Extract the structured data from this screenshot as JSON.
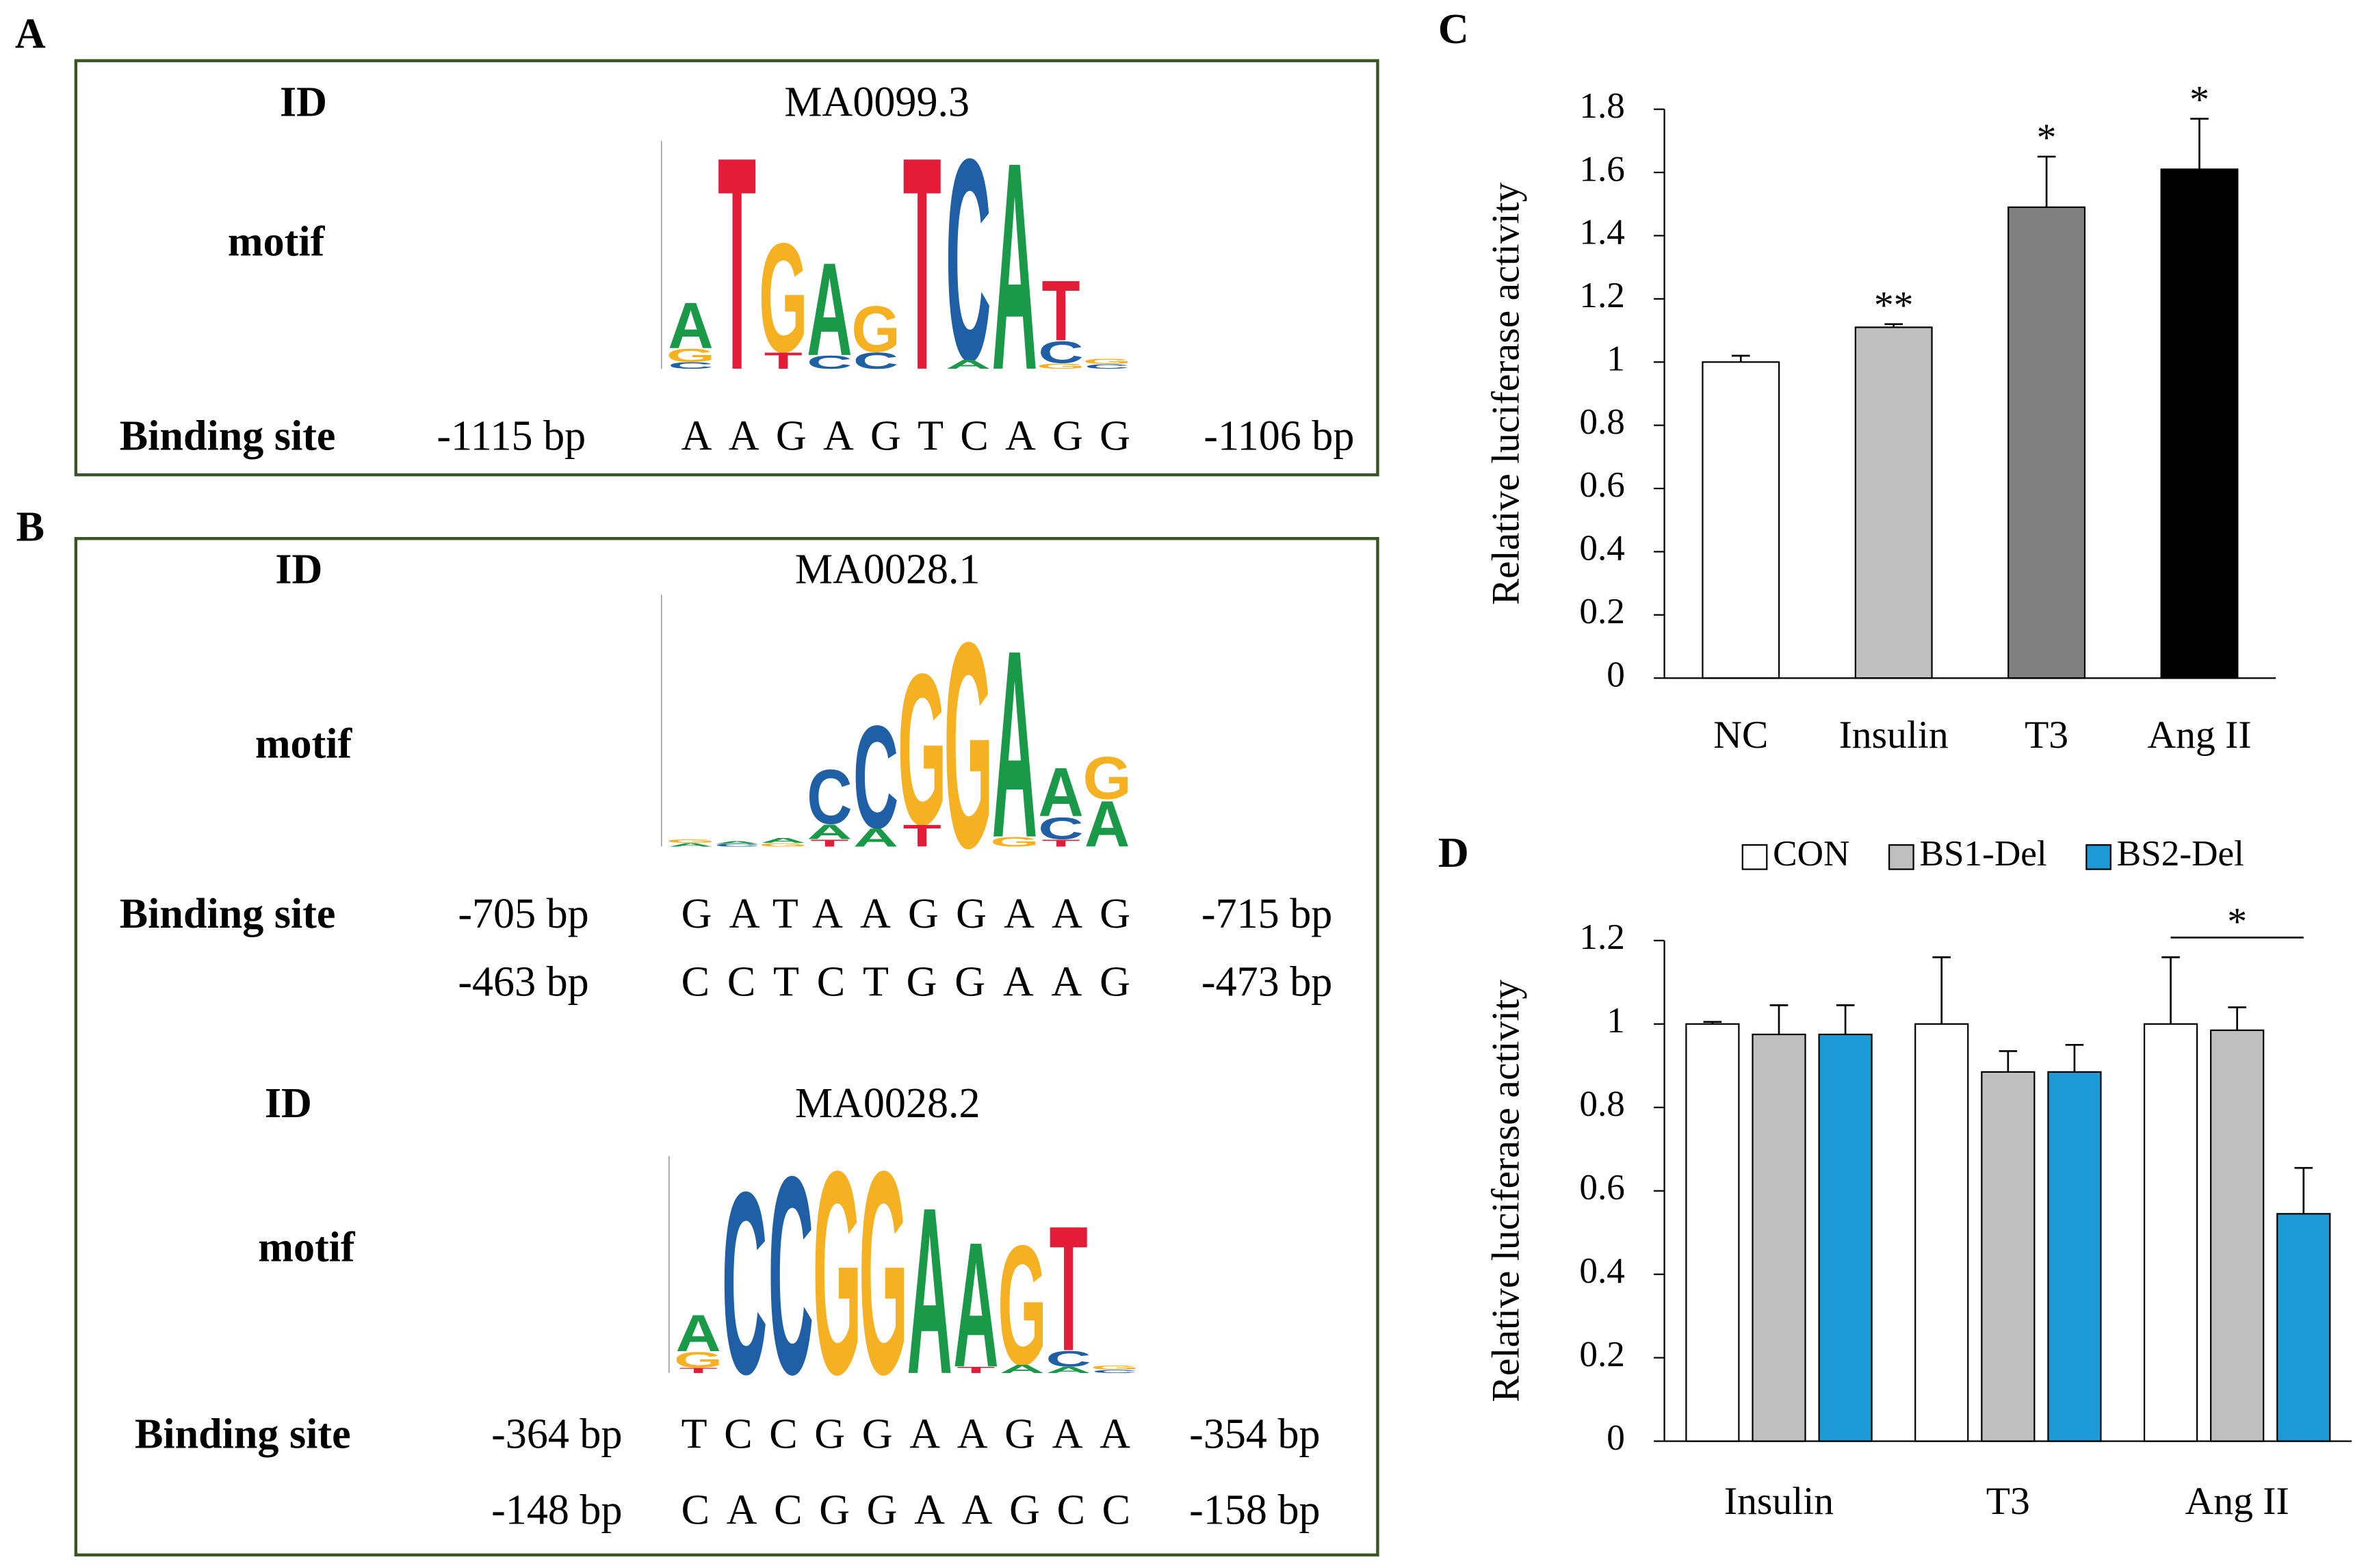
{
  "panels": [
    {
      "label": "A",
      "entries": [
        {
          "id_label": "ID",
          "id": "MA0099.3",
          "motif_label": "motif",
          "logo": [
            {
              "letters": [
                "A",
                "G",
                "C"
              ],
              "bits": [
                0.42,
                0.12,
                0.06
              ]
            },
            {
              "letters": [
                "T"
              ],
              "bits": [
                1.95
              ]
            },
            {
              "letters": [
                "G",
                "T"
              ],
              "bits": [
                1.0,
                0.15
              ]
            },
            {
              "letters": [
                "A",
                "C"
              ],
              "bits": [
                0.85,
                0.12
              ]
            },
            {
              "letters": [
                "G",
                "C"
              ],
              "bits": [
                0.42,
                0.15
              ]
            },
            {
              "letters": [
                "T"
              ],
              "bits": [
                1.95
              ]
            },
            {
              "letters": [
                "C",
                "A"
              ],
              "bits": [
                1.85,
                0.08
              ]
            },
            {
              "letters": [
                "A"
              ],
              "bits": [
                1.9
              ]
            },
            {
              "letters": [
                "T",
                "C",
                "G"
              ],
              "bits": [
                0.55,
                0.2,
                0.05
              ]
            },
            {
              "letters": [
                "G",
                "C"
              ],
              "bits": [
                0.05,
                0.04
              ]
            }
          ],
          "binding_label": "Binding site",
          "sites": [
            {
              "start": "-1115 bp",
              "sequence": "AAGAGTCAGG",
              "end": "-1106 bp"
            }
          ]
        }
      ]
    },
    {
      "label": "B",
      "entries": [
        {
          "id_label": "ID",
          "id": "MA0028.1",
          "motif_label": "motif",
          "logo": [
            {
              "letters": [
                "G",
                "A"
              ],
              "bits": [
                0.03,
                0.03
              ]
            },
            {
              "letters": [
                "A",
                "C"
              ],
              "bits": [
                0.02,
                0.02
              ]
            },
            {
              "letters": [
                "A",
                "G"
              ],
              "bits": [
                0.04,
                0.03
              ]
            },
            {
              "letters": [
                "C",
                "A",
                "T"
              ],
              "bits": [
                0.45,
                0.12,
                0.06
              ]
            },
            {
              "letters": [
                "C",
                "A"
              ],
              "bits": [
                0.85,
                0.15
              ]
            },
            {
              "letters": [
                "G",
                "T"
              ],
              "bits": [
                1.25,
                0.18
              ]
            },
            {
              "letters": [
                "G"
              ],
              "bits": [
                1.7
              ]
            },
            {
              "letters": [
                "A",
                "G"
              ],
              "bits": [
                1.55,
                0.08
              ]
            },
            {
              "letters": [
                "A",
                "C",
                "T"
              ],
              "bits": [
                0.4,
                0.18,
                0.06
              ]
            },
            {
              "letters": [
                "G",
                "A"
              ],
              "bits": [
                0.35,
                0.38
              ]
            }
          ],
          "binding_label": "Binding site",
          "sites": [
            {
              "start": "-705 bp",
              "sequence": "GATAAGGAAG",
              "end": "-715 bp"
            },
            {
              "start": "-463 bp",
              "sequence": "CCTCTGGAAG",
              "end": "-473 bp"
            }
          ]
        },
        {
          "id_label": "ID",
          "id": "MA0028.2",
          "motif_label": "motif",
          "logo": [
            {
              "letters": [
                "A",
                "G",
                "T"
              ],
              "bits": [
                0.35,
                0.15,
                0.05
              ]
            },
            {
              "letters": [
                "C"
              ],
              "bits": [
                1.75
              ]
            },
            {
              "letters": [
                "C"
              ],
              "bits": [
                1.9
              ]
            },
            {
              "letters": [
                "G"
              ],
              "bits": [
                1.95
              ]
            },
            {
              "letters": [
                "G"
              ],
              "bits": [
                1.95
              ]
            },
            {
              "letters": [
                "A"
              ],
              "bits": [
                1.6
              ]
            },
            {
              "letters": [
                "A",
                "T"
              ],
              "bits": [
                1.2,
                0.06
              ]
            },
            {
              "letters": [
                "G",
                "A"
              ],
              "bits": [
                1.15,
                0.08
              ]
            },
            {
              "letters": [
                "T",
                "C",
                "A"
              ],
              "bits": [
                1.2,
                0.15,
                0.06
              ]
            },
            {
              "letters": [
                "G",
                "C"
              ],
              "bits": [
                0.04,
                0.03
              ]
            }
          ],
          "binding_label": "Binding site",
          "sites": [
            {
              "start": "-364 bp",
              "sequence": "TCCGGAAGAA",
              "end": "-354 bp"
            },
            {
              "start": "-148 bp",
              "sequence": "CACGGAAGCC",
              "end": "-158 bp"
            }
          ]
        }
      ]
    }
  ],
  "logo_colors": {
    "A": "#1a9a48",
    "C": "#1f5fa6",
    "G": "#f5b122",
    "T": "#e41c38"
  },
  "chart_data": [
    {
      "type": "bar",
      "panel": "C",
      "y_label": "Relative luciferase activity",
      "categories": [
        "NC",
        "Insulin",
        "T3",
        "Ang II"
      ],
      "values": [
        1.0,
        1.11,
        1.49,
        1.61
      ],
      "errors": [
        0.02,
        0.01,
        0.16,
        0.16
      ],
      "colors": [
        "#ffffff",
        "#c0c0c0",
        "#808080",
        "#000000"
      ],
      "annotations": [
        null,
        "**",
        "*",
        "*"
      ],
      "ylim": [
        0,
        1.8
      ],
      "yticks": [
        0,
        0.2,
        0.4,
        0.6,
        0.8,
        1,
        1.2,
        1.4,
        1.6,
        1.8
      ]
    },
    {
      "type": "bar",
      "panel": "D",
      "y_label": "Relative luciferase activity",
      "categories": [
        "Insulin",
        "T3",
        "Ang II"
      ],
      "series": [
        {
          "name": "CON",
          "color": "#ffffff",
          "values": [
            1.0,
            1.0,
            1.0
          ],
          "errors": [
            0.005,
            0.16,
            0.16
          ]
        },
        {
          "name": "BS1-Del",
          "color": "#bfbfbf",
          "values": [
            0.975,
            0.885,
            0.985
          ],
          "errors": [
            0.07,
            0.05,
            0.055
          ]
        },
        {
          "name": "BS2-Del",
          "color": "#1b9ad6",
          "values": [
            0.975,
            0.885,
            0.545
          ],
          "errors": [
            0.07,
            0.065,
            0.11
          ]
        }
      ],
      "significance": {
        "text": "*"
      },
      "legend": "top",
      "ylim": [
        0,
        1.2
      ],
      "yticks": [
        0,
        0.2,
        0.4,
        0.6,
        0.8,
        1,
        1.2
      ]
    }
  ]
}
